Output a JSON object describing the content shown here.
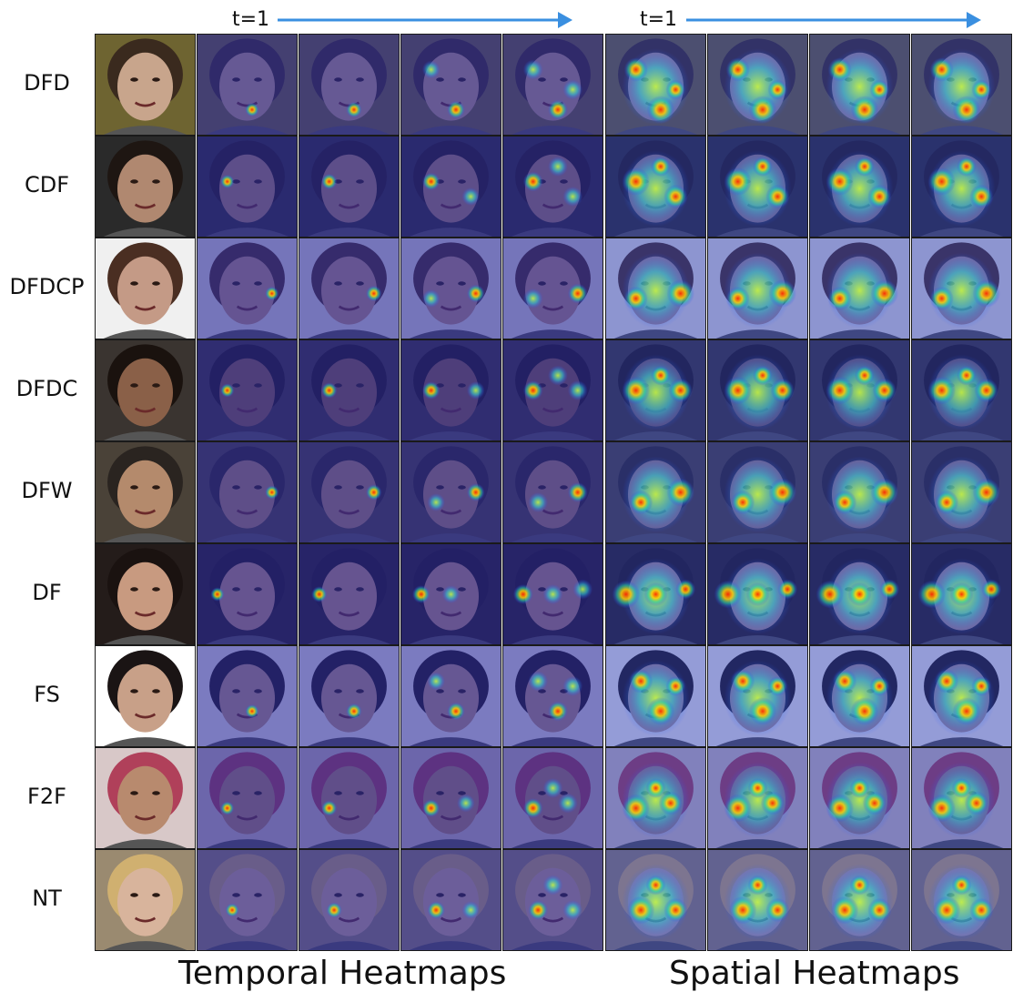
{
  "figure": {
    "time_label": "t=1",
    "temporal_title": "Temporal Heatmaps",
    "spatial_title": "Spatial Heatmaps",
    "arrow_color": "#3a8fe0",
    "rows": [
      {
        "label": "DFD",
        "skin": "#c8a58c",
        "bg": "#6e6431",
        "hair": "#3a2a1e",
        "hot": [
          [
            0.55,
            0.75
          ],
          [
            0.3,
            0.35
          ],
          [
            0.7,
            0.55
          ]
        ]
      },
      {
        "label": "CDF",
        "skin": "#b08870",
        "bg": "#2a2a2a",
        "hair": "#1e1612",
        "hot": [
          [
            0.3,
            0.45
          ],
          [
            0.7,
            0.6
          ],
          [
            0.55,
            0.3
          ]
        ]
      },
      {
        "label": "DFDCP",
        "skin": "#c49a86",
        "bg": "#f0f0f0",
        "hair": "#4a2e22",
        "hot": [
          [
            0.75,
            0.55
          ],
          [
            0.3,
            0.6
          ]
        ]
      },
      {
        "label": "DFDC",
        "skin": "#8a6048",
        "bg": "#3a3430",
        "hair": "#1a120e",
        "hot": [
          [
            0.3,
            0.5
          ],
          [
            0.75,
            0.5
          ],
          [
            0.55,
            0.35
          ]
        ]
      },
      {
        "label": "DFW",
        "skin": "#b48a6c",
        "bg": "#4a4238",
        "hair": "#2a2420",
        "hot": [
          [
            0.75,
            0.5
          ],
          [
            0.35,
            0.6
          ]
        ]
      },
      {
        "label": "DF",
        "skin": "#c89a80",
        "bg": "#241c1a",
        "hair": "#1a1210",
        "hot": [
          [
            0.2,
            0.5
          ],
          [
            0.5,
            0.5
          ],
          [
            0.8,
            0.45
          ]
        ]
      },
      {
        "label": "FS",
        "skin": "#c8a088",
        "bg": "#ffffff",
        "hair": "#1a1414",
        "hot": [
          [
            0.55,
            0.65
          ],
          [
            0.35,
            0.35
          ],
          [
            0.7,
            0.4
          ]
        ]
      },
      {
        "label": "F2F",
        "skin": "#b88a6e",
        "bg": "#d8c8c8",
        "hair": "#b0405a",
        "hot": [
          [
            0.3,
            0.6
          ],
          [
            0.65,
            0.55
          ],
          [
            0.5,
            0.4
          ]
        ]
      },
      {
        "label": "NT",
        "skin": "#d8b49c",
        "bg": "#9a8a70",
        "hair": "#d0b070",
        "hot": [
          [
            0.35,
            0.6
          ],
          [
            0.7,
            0.6
          ],
          [
            0.5,
            0.35
          ]
        ]
      }
    ]
  }
}
